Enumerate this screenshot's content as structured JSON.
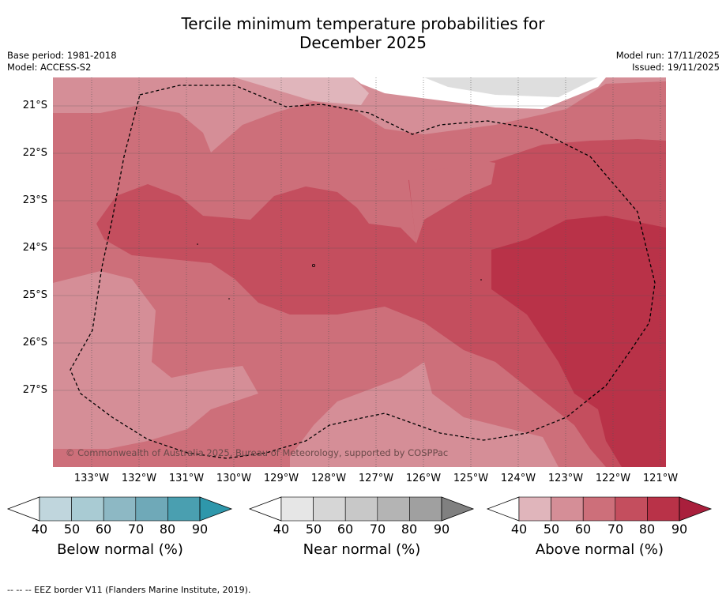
{
  "title_line1": "Tercile minimum temperature probabilities for",
  "title_line2": "December 2025",
  "base_period": "Base period: 1981-2018",
  "model": "Model: ACCESS-S2",
  "model_run": "Model run: 17/11/2025",
  "issued": "Issued: 19/11/2025",
  "copyright": "© Commonwealth of Australia 2025, Bureau of Meteorology, supported by COSPPac",
  "lat_labels": [
    "21°S",
    "22°S",
    "23°S",
    "24°S",
    "25°S",
    "26°S",
    "27°S"
  ],
  "lon_labels": [
    "133°W",
    "132°W",
    "131°W",
    "130°W",
    "129°W",
    "128°W",
    "127°W",
    "126°W",
    "125°W",
    "124°W",
    "123°W",
    "122°W",
    "121°W"
  ],
  "legend": {
    "below": {
      "label": "Below normal (%)",
      "colors": [
        "#c0d6dd",
        "#a9cbd3",
        "#8db8c4",
        "#6fa9b8",
        "#4a9fb0",
        "#2e97ab"
      ]
    },
    "near": {
      "label": "Near normal (%)",
      "colors": [
        "#e6e6e6",
        "#d6d6d6",
        "#c8c8c8",
        "#b4b4b4",
        "#a0a0a0",
        "#808080"
      ]
    },
    "above": {
      "label": "Above normal (%)",
      "colors": [
        "#e0b5bb",
        "#d58e97",
        "#cd6f7a",
        "#c44e5e",
        "#b93248",
        "#a91f3c"
      ]
    },
    "ticks": [
      "40",
      "50",
      "60",
      "70",
      "80",
      "90"
    ]
  },
  "footer": "--  --  -- EEZ border V11 (Flanders Marine Institute, 2019)."
}
